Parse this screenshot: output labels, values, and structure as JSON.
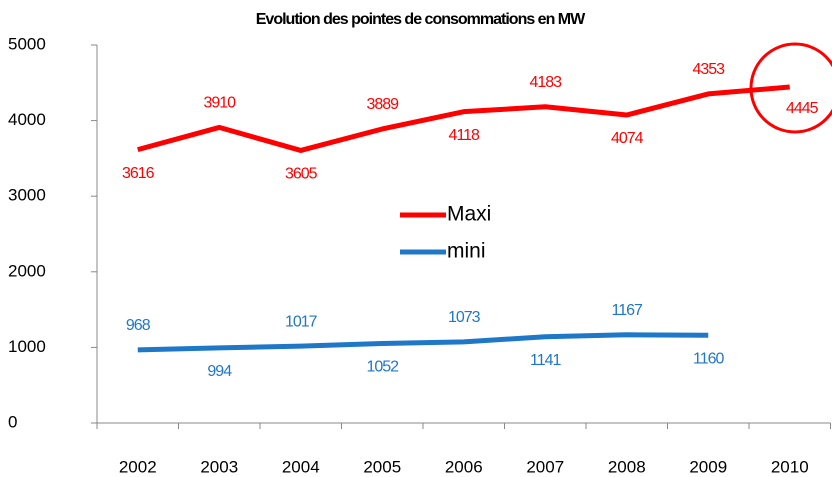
{
  "chart_data": {
    "type": "line",
    "title": "Evolution des pointes de consommations en MW",
    "categories": [
      "2002",
      "2003",
      "2004",
      "2005",
      "2006",
      "2007",
      "2008",
      "2009",
      "2010"
    ],
    "series": [
      {
        "name": "Maxi",
        "color": "#ff0000",
        "values": [
          3616,
          3910,
          3605,
          3889,
          4118,
          4183,
          4074,
          4353,
          4445
        ]
      },
      {
        "name": "mini",
        "color": "#1f77c8",
        "values": [
          968,
          994,
          1017,
          1052,
          1073,
          1141,
          1167,
          1160,
          null
        ]
      }
    ],
    "ylim": [
      0,
      5000
    ],
    "yticks": [
      0,
      1000,
      2000,
      3000,
      4000,
      5000
    ],
    "grid": false
  }
}
